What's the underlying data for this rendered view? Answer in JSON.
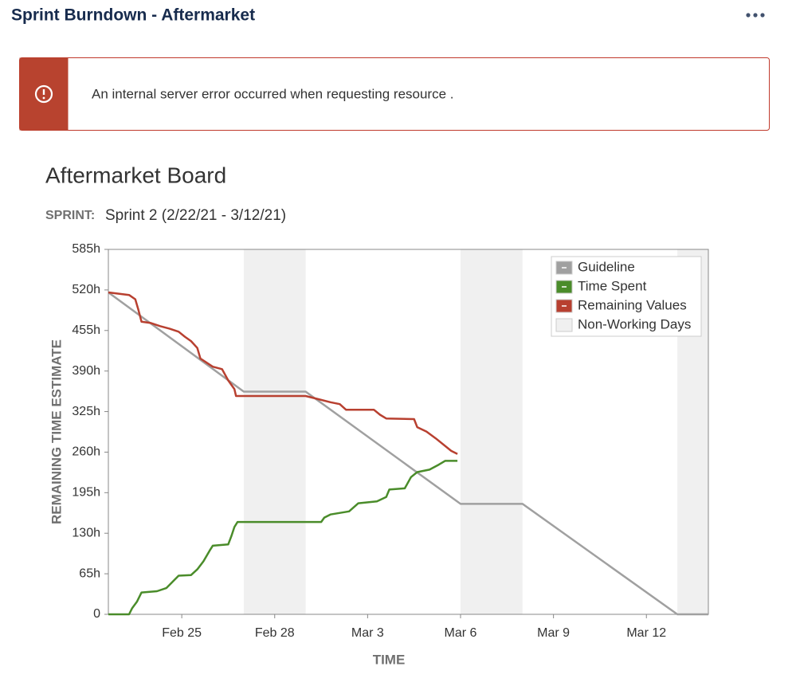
{
  "header": {
    "title": "Sprint Burndown - Aftermarket"
  },
  "error": {
    "message": "An internal server error occurred when requesting resource ."
  },
  "chart_data": {
    "type": "line",
    "title": "Aftermarket Board",
    "subtitle_label": "SPRINT:",
    "subtitle": "Sprint 2 (2/22/21 - 3/12/21)",
    "x_label": "TIME",
    "y_label": "REMAINING TIME ESTIMATE",
    "xlim": [
      0.63,
      20
    ],
    "xticks": [
      {
        "value": 3,
        "label": "Feb 25"
      },
      {
        "value": 6,
        "label": "Feb 28"
      },
      {
        "value": 9,
        "label": "Mar 3"
      },
      {
        "value": 12,
        "label": "Mar 6"
      },
      {
        "value": 15,
        "label": "Mar 9"
      },
      {
        "value": 18,
        "label": "Mar 12"
      }
    ],
    "ylim": [
      0,
      585
    ],
    "yticks": [
      0,
      {
        "value": 65,
        "label": "65h"
      },
      {
        "value": 130,
        "label": "130h"
      },
      {
        "value": 195,
        "label": "195h"
      },
      {
        "value": 260,
        "label": "260h"
      },
      {
        "value": 325,
        "label": "325h"
      },
      {
        "value": 390,
        "label": "390h"
      },
      {
        "value": 455,
        "label": "455h"
      },
      {
        "value": 520,
        "label": "520h"
      },
      {
        "value": 585,
        "label": "585h"
      }
    ],
    "legend": "top-right",
    "non_working_days": {
      "name": "Non-Working Days",
      "color": "#f0f0f0",
      "ranges": [
        [
          5,
          7
        ],
        [
          12,
          14
        ],
        [
          19,
          20
        ]
      ]
    },
    "series": [
      {
        "name": "Guideline",
        "color": "#a0a0a0",
        "x": [
          0.63,
          5,
          7,
          12,
          14,
          19,
          20
        ],
        "values": [
          516,
          357,
          357,
          177,
          177,
          0,
          0
        ]
      },
      {
        "name": "Time Spent",
        "color": "#4a8c2a",
        "x": [
          0.63,
          1.3,
          1.4,
          1.55,
          1.7,
          2.2,
          2.5,
          2.7,
          2.9,
          3.3,
          3.5,
          3.7,
          3.9,
          4.0,
          4.5,
          4.6,
          4.7,
          4.8,
          7.5,
          7.6,
          7.8,
          8.4,
          8.7,
          9.3,
          9.6,
          9.7,
          10.2,
          10.4,
          10.6,
          11.0,
          11.3,
          11.5,
          11.9
        ],
        "values": [
          0,
          0,
          10,
          20,
          35,
          37,
          42,
          52,
          62,
          63,
          72,
          85,
          102,
          110,
          112,
          125,
          140,
          148,
          148,
          155,
          160,
          165,
          178,
          181,
          188,
          200,
          202,
          220,
          228,
          232,
          240,
          246,
          246
        ]
      },
      {
        "name": "Remaining Values",
        "color": "#b84030",
        "x": [
          0.63,
          1.3,
          1.5,
          1.6,
          1.7,
          2.0,
          2.3,
          2.6,
          2.9,
          3.1,
          3.3,
          3.5,
          3.6,
          4.0,
          4.3,
          4.5,
          4.7,
          4.75,
          7.0,
          7.4,
          7.8,
          8.1,
          8.3,
          9.2,
          9.4,
          9.6,
          10.5,
          10.6,
          10.9,
          11.2,
          11.7,
          11.9
        ],
        "values": [
          516,
          512,
          505,
          488,
          469,
          467,
          462,
          458,
          453,
          445,
          438,
          427,
          410,
          397,
          393,
          375,
          361,
          350,
          350,
          345,
          340,
          337,
          328,
          328,
          320,
          314,
          313,
          300,
          293,
          282,
          262,
          257
        ]
      }
    ]
  }
}
